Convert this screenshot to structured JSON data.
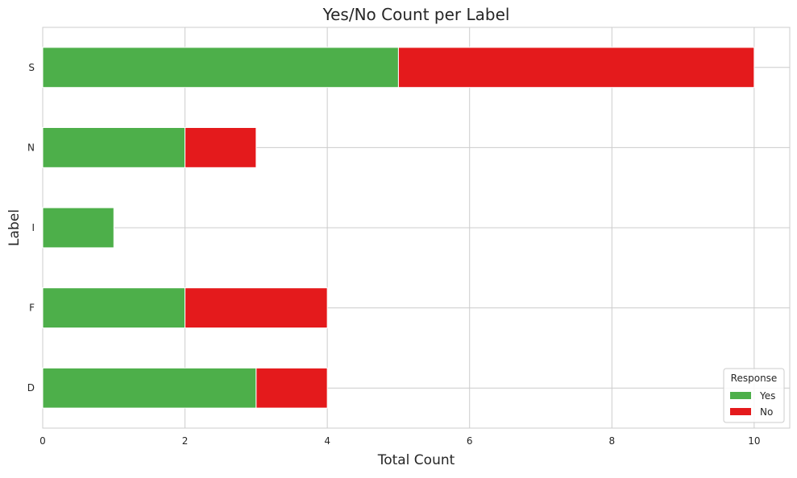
{
  "chart_data": {
    "type": "bar",
    "orientation": "horizontal",
    "stacked": true,
    "title": "Yes/No Count per Label",
    "xlabel": "Total Count",
    "ylabel": "Label",
    "categories": [
      "D",
      "F",
      "I",
      "N",
      "S"
    ],
    "series": [
      {
        "name": "Yes",
        "values": [
          3,
          2,
          1,
          2,
          5
        ],
        "color": "#4daf4a"
      },
      {
        "name": "No",
        "values": [
          1,
          2,
          0,
          1,
          5
        ],
        "color": "#e41a1c"
      }
    ],
    "xlim": [
      0,
      10.5
    ],
    "xticks": [
      "0",
      "2",
      "4",
      "6",
      "8",
      "10"
    ],
    "grid": true,
    "legend": {
      "title": "Response",
      "placement": "lower-right"
    }
  }
}
